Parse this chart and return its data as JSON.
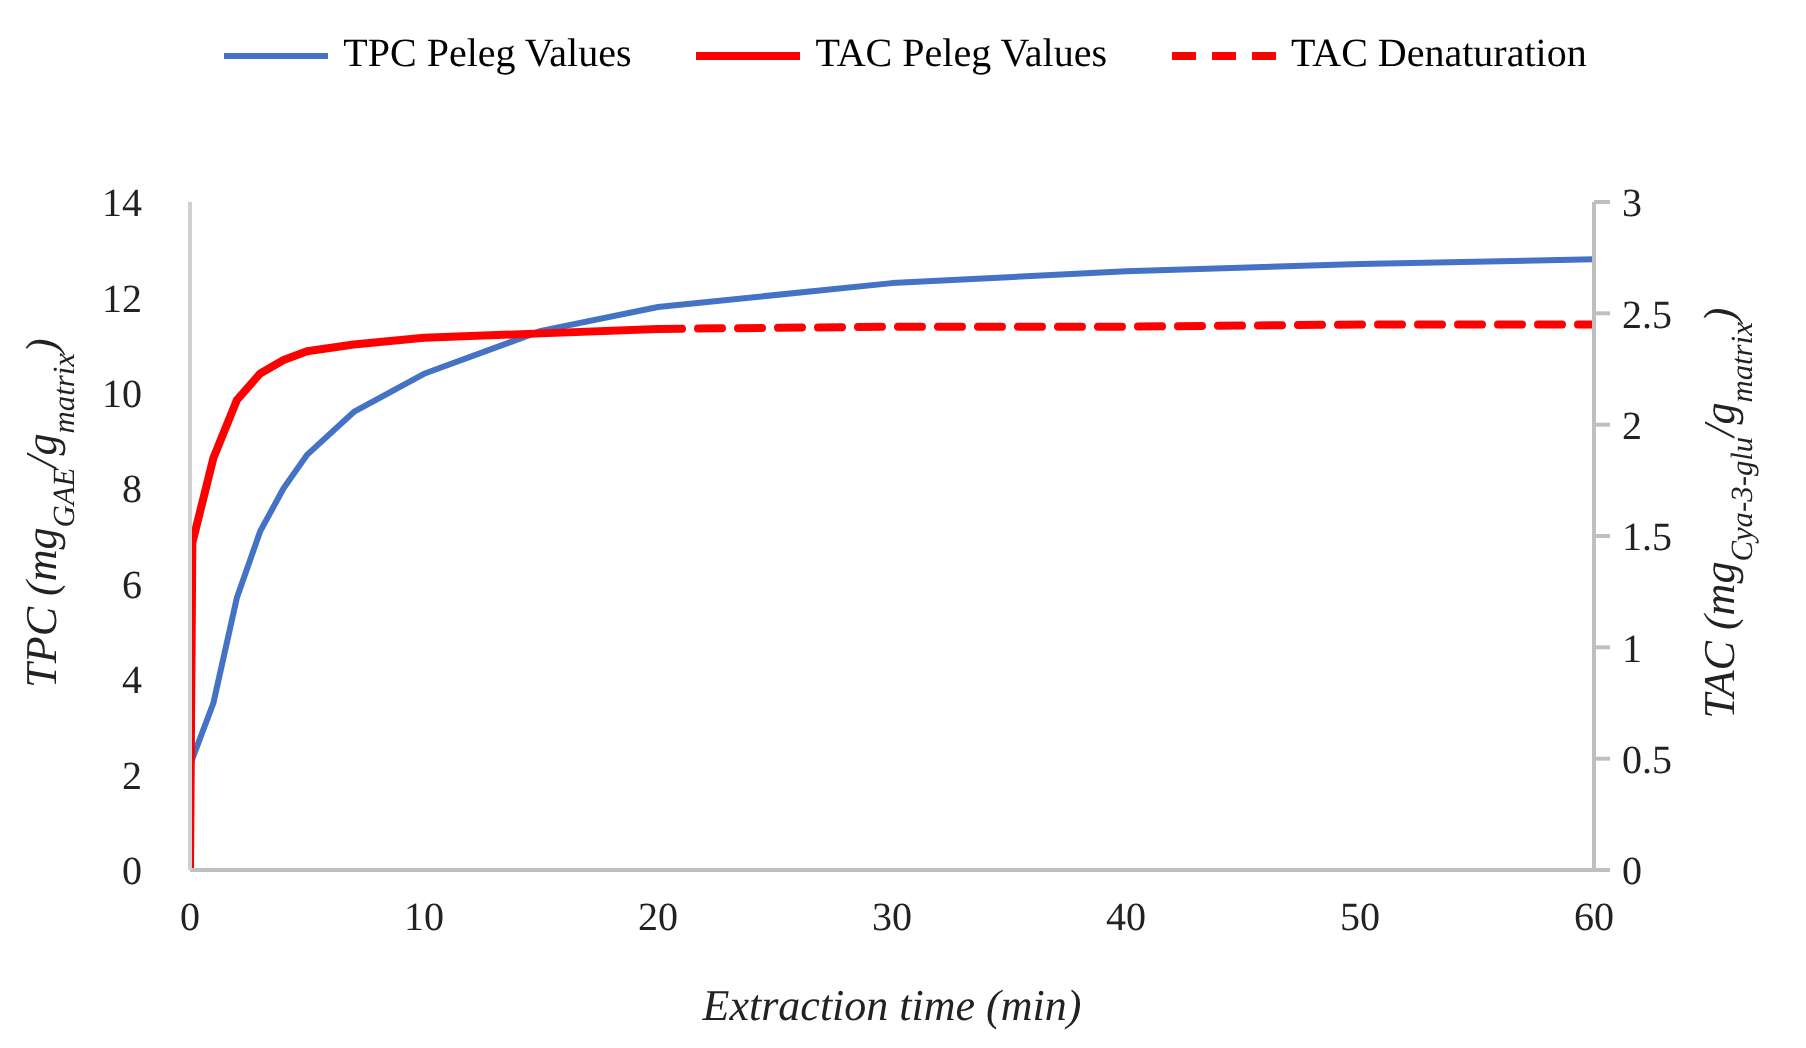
{
  "chart_data": {
    "type": "line",
    "xlabel": "Extraction time (min)",
    "ylabel": "TPC (mg$_{GAE}$/g$_{matrix}$)",
    "y2label": "TAC (mg$_{Cya-3-glu}$/g$_{matrix}$)",
    "xlim": [
      0,
      60
    ],
    "xticks": [
      0,
      10,
      20,
      30,
      40,
      50,
      60
    ],
    "ylim": [
      0,
      14
    ],
    "yticks": [
      0,
      2,
      4,
      6,
      8,
      10,
      12,
      14
    ],
    "y2lim": [
      0,
      3
    ],
    "y2ticks": [
      0,
      0.5,
      1,
      1.5,
      2,
      2.5,
      3
    ],
    "legend": "top",
    "marker": "none",
    "series": [
      {
        "name": "TPC Peleg Values",
        "color": "#4472c4",
        "line_style": "solid",
        "x": [
          0,
          1,
          2,
          3,
          4,
          5,
          7,
          10,
          15,
          20,
          30,
          40,
          50,
          60
        ],
        "values": [
          2.2,
          3.5,
          5.7,
          7.1,
          8.0,
          8.7,
          9.6,
          10.4,
          11.3,
          11.8,
          12.3,
          12.55,
          12.7,
          12.8
        ]
      },
      {
        "name": "TAC Peleg Values",
        "color": "#ff0000",
        "axis": "y2",
        "line_style": "solid",
        "x": [
          0,
          0.1,
          1,
          2,
          3,
          4,
          5,
          7,
          10,
          15,
          20
        ],
        "values": [
          0,
          1.47,
          1.85,
          2.11,
          2.23,
          2.29,
          2.33,
          2.36,
          2.39,
          2.41,
          2.43
        ]
      },
      {
        "name": "TAC Denaturation",
        "color": "#ff0000",
        "axis": "y2",
        "line_style": "dashed",
        "x": [
          20,
          30,
          40,
          50,
          60
        ],
        "values": [
          2.43,
          2.44,
          2.44,
          2.45,
          2.45
        ]
      }
    ]
  }
}
